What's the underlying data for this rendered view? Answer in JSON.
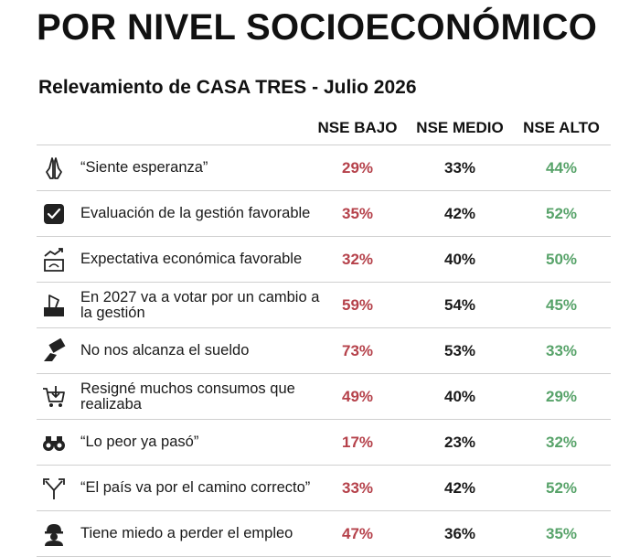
{
  "title": "POR NIVEL SOCIOECONÓMICO",
  "subtitle": "Relevamiento de CASA TRES - Julio 2026",
  "columns": [
    "NSE BAJO",
    "NSE MEDIO",
    "NSE ALTO"
  ],
  "colors": {
    "bajo": "#b5414a",
    "medio": "#1a1a1a",
    "alto": "#58a36a",
    "divider": "#cfcfcf"
  },
  "rows": [
    {
      "icon": "praying-hands-icon",
      "label": "“Siente esperanza”",
      "bajo": "29%",
      "medio": "33%",
      "alto": "44%"
    },
    {
      "icon": "checkbox-icon",
      "label": "Evaluación de la gestión favorable",
      "bajo": "35%",
      "medio": "42%",
      "alto": "52%"
    },
    {
      "icon": "growth-chart-icon",
      "label": "Expectativa económica favorable",
      "bajo": "32%",
      "medio": "40%",
      "alto": "50%"
    },
    {
      "icon": "ballot-box-icon",
      "label": "En 2027 va a votar por un cambio a la gestión",
      "bajo": "59%",
      "medio": "54%",
      "alto": "45%"
    },
    {
      "icon": "money-hand-icon",
      "label": "No nos alcanza el sueldo",
      "bajo": "73%",
      "medio": "53%",
      "alto": "33%"
    },
    {
      "icon": "shopping-cart-icon",
      "label": "Resigné muchos consumos que realizaba",
      "bajo": "49%",
      "medio": "40%",
      "alto": "29%"
    },
    {
      "icon": "binoculars-icon",
      "label": "“Lo peor ya pasó”",
      "bajo": "17%",
      "medio": "23%",
      "alto": "32%"
    },
    {
      "icon": "split-arrows-icon",
      "label": "“El país va por el camino correcto”",
      "bajo": "33%",
      "medio": "42%",
      "alto": "52%"
    },
    {
      "icon": "worker-helmet-icon",
      "label": "Tiene miedo a perder el empleo",
      "bajo": "47%",
      "medio": "36%",
      "alto": "35%"
    }
  ]
}
